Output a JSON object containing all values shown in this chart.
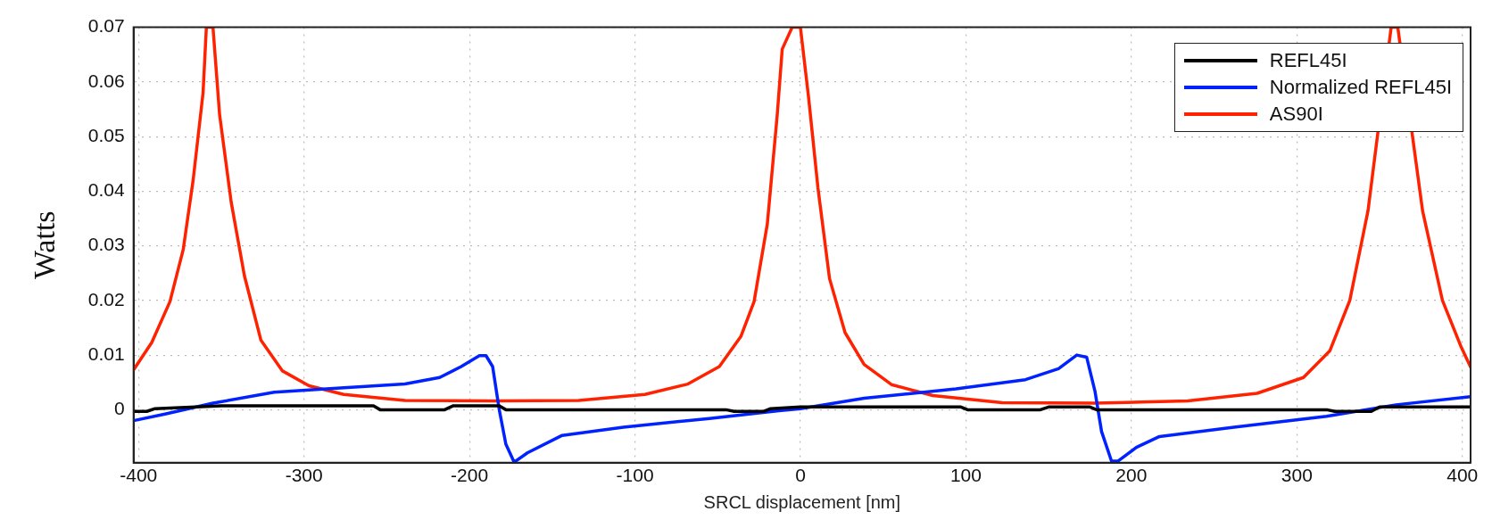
{
  "chart_data": {
    "type": "line",
    "xlabel": "SRCL displacement [nm]",
    "ylabel": "Watts",
    "xlim": [
      -403,
      405
    ],
    "ylim": [
      -0.0097,
      0.07
    ],
    "xticks": [
      -400,
      -300,
      -200,
      -100,
      0,
      100,
      200,
      300,
      400
    ],
    "yticks": [
      0,
      0.01,
      0.02,
      0.03,
      0.04,
      0.05,
      0.06,
      0.07
    ],
    "grid": true,
    "legend": "top right",
    "marker": "none",
    "line_style": "solid",
    "series": [
      {
        "name": "REFL45I",
        "color": "#000000",
        "x": [
          -403,
          -395,
          -390,
          -350,
          -258,
          -254,
          -215,
          -210,
          -182,
          -178,
          -45,
          -40,
          -22,
          -18,
          0,
          97,
          101,
          145,
          150,
          175,
          179,
          318,
          323,
          345,
          350,
          405
        ],
        "values": [
          -0.0003,
          -0.0003,
          0.0002,
          0.0007,
          0.0007,
          0,
          0,
          0.0007,
          0.0007,
          0,
          0,
          -0.0003,
          -0.0003,
          0.0002,
          0.0005,
          0.0005,
          0,
          0,
          0.0005,
          0.0005,
          0,
          0,
          -0.0003,
          -0.0003,
          0.0005,
          0.0005
        ]
      },
      {
        "name": "Normalized REFL45I",
        "color": "#0022ff",
        "x": [
          -403,
          -384,
          -355,
          -318,
          -278,
          -239,
          -218,
          -205,
          -194,
          -190,
          -186,
          -182,
          -178,
          -173,
          -165,
          -144,
          -107,
          -55,
          -13,
          0,
          38.5,
          94,
          136,
          156,
          167,
          173,
          178,
          182,
          188,
          192,
          203,
          217,
          262,
          318,
          360,
          405
        ],
        "values": [
          -0.002,
          -0.0008,
          0.0012,
          0.0032,
          0.004,
          0.0047,
          0.0059,
          0.0079,
          0.0099,
          0.0099,
          0.0079,
          0,
          -0.0063,
          -0.0096,
          -0.0079,
          -0.0047,
          -0.0032,
          -0.0016,
          -0.0002,
          0.0002,
          0.0021,
          0.0038,
          0.0055,
          0.0075,
          0.01,
          0.0096,
          0.0034,
          -0.004,
          -0.0094,
          -0.0094,
          -0.0069,
          -0.0049,
          -0.0032,
          -0.0012,
          0.0009,
          0.0024
        ]
      },
      {
        "name": "AS90I",
        "color": "#ff2200",
        "x": [
          -403,
          -392,
          -381,
          -373,
          -367,
          -361,
          -359,
          -355,
          -351,
          -344,
          -336,
          -326,
          -313,
          -297,
          -276,
          -239,
          -186,
          -134,
          -94,
          -68,
          -49,
          -36,
          -28,
          -20,
          -14,
          -11,
          -5,
          0,
          5,
          10.6,
          17.6,
          27,
          38.5,
          55,
          80,
          122,
          178,
          234,
          276,
          304,
          320,
          332,
          343,
          351,
          357,
          361,
          368,
          376,
          388,
          399,
          405
        ],
        "values": [
          0.0073,
          0.0123,
          0.0198,
          0.0293,
          0.042,
          0.058,
          0.07,
          0.07,
          0.054,
          0.038,
          0.0245,
          0.0127,
          0.0071,
          0.0044,
          0.0028,
          0.0017,
          0.0016,
          0.0017,
          0.0028,
          0.0047,
          0.0079,
          0.0134,
          0.0198,
          0.034,
          0.054,
          0.066,
          0.07,
          0.07,
          0.057,
          0.0406,
          0.024,
          0.0141,
          0.0083,
          0.0046,
          0.0026,
          0.0013,
          0.0012,
          0.0016,
          0.003,
          0.0059,
          0.0108,
          0.02,
          0.0364,
          null,
          0.07,
          0.07,
          null,
          0.0364,
          0.02,
          0.0117,
          0.0078
        ]
      }
    ]
  }
}
